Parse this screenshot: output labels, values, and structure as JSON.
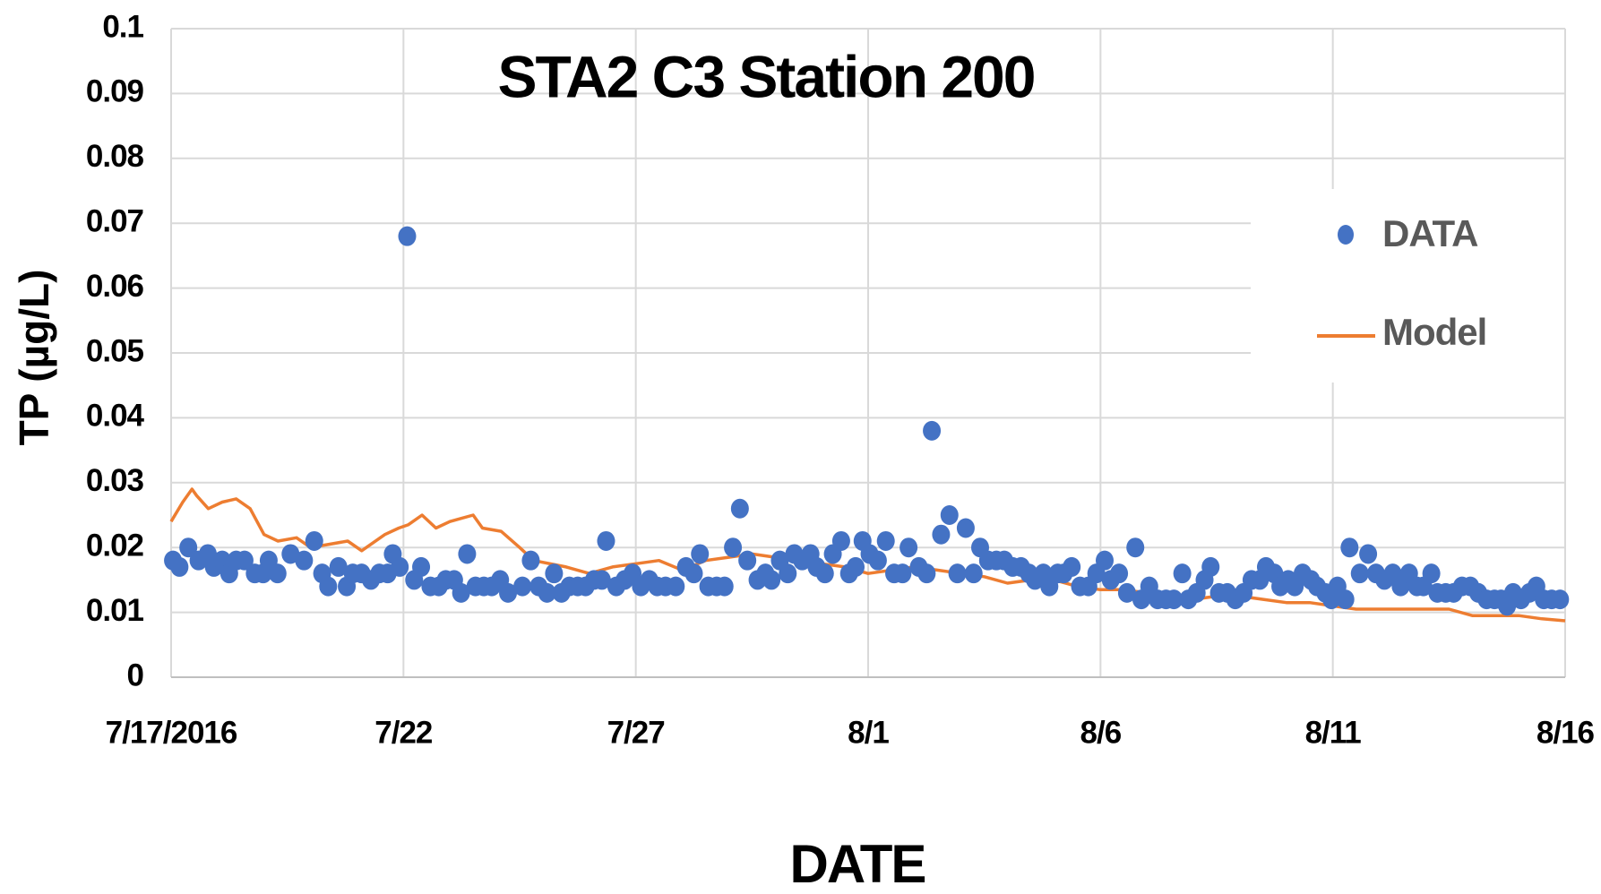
{
  "chart_data": {
    "type": "scatter",
    "title": "STA2 C3 Station 200",
    "x_label": "DATE",
    "y_label": "TP (µg/L)",
    "xlim": [
      0,
      30
    ],
    "ylim": [
      0,
      0.1
    ],
    "xticks": [
      {
        "value": 0,
        "label": "7/17/2016"
      },
      {
        "value": 5,
        "label": "7/22"
      },
      {
        "value": 10,
        "label": "7/27"
      },
      {
        "value": 15,
        "label": "8/1"
      },
      {
        "value": 20,
        "label": "8/6"
      },
      {
        "value": 25,
        "label": "8/11"
      },
      {
        "value": 30,
        "label": "8/16"
      }
    ],
    "yticks": [
      0,
      0.01,
      0.02,
      0.03,
      0.04,
      0.05,
      0.06,
      0.07,
      0.08,
      0.09,
      0.1
    ],
    "grid": true,
    "legend": "right",
    "series": [
      {
        "name": "DATA",
        "type": "scatter",
        "color": "#4472c4",
        "x": [
          0.04,
          0.18,
          0.37,
          0.59,
          0.79,
          0.92,
          1.1,
          1.25,
          1.4,
          1.58,
          1.8,
          1.98,
          2.1,
          2.29,
          2.57,
          2.86,
          3.08,
          3.25,
          3.38,
          3.6,
          3.78,
          3.91,
          4.1,
          4.3,
          4.48,
          4.66,
          4.77,
          4.92,
          5.08,
          5.23,
          5.38,
          5.58,
          5.76,
          5.91,
          6.09,
          6.24,
          6.37,
          6.55,
          6.73,
          6.9,
          7.08,
          7.25,
          7.56,
          7.74,
          7.91,
          8.09,
          8.24,
          8.4,
          8.57,
          8.75,
          8.92,
          9.1,
          9.27,
          9.36,
          9.58,
          9.76,
          9.93,
          10.11,
          10.29,
          10.46,
          10.64,
          10.86,
          11.08,
          11.25,
          11.38,
          11.56,
          11.74,
          11.91,
          12.09,
          12.24,
          12.4,
          12.62,
          12.79,
          12.92,
          13.1,
          13.27,
          13.41,
          13.58,
          13.76,
          13.89,
          14.07,
          14.24,
          14.42,
          14.59,
          14.73,
          14.88,
          15.03,
          15.21,
          15.38,
          15.56,
          15.74,
          15.87,
          16.09,
          16.26,
          16.37,
          16.57,
          16.75,
          16.92,
          17.1,
          17.27,
          17.41,
          17.58,
          17.76,
          17.93,
          18.11,
          18.29,
          18.46,
          18.59,
          18.77,
          18.9,
          19.08,
          19.21,
          19.38,
          19.56,
          19.74,
          19.91,
          20.09,
          20.22,
          20.4,
          20.57,
          20.75,
          20.88,
          21.05,
          21.23,
          21.41,
          21.58,
          21.76,
          21.89,
          22.07,
          22.24,
          22.37,
          22.55,
          22.73,
          22.9,
          23.08,
          23.25,
          23.43,
          23.56,
          23.74,
          23.87,
          24.04,
          24.18,
          24.35,
          24.53,
          24.66,
          24.84,
          24.97,
          25.1,
          25.27,
          25.36,
          25.58,
          25.76,
          25.93,
          26.11,
          26.29,
          26.46,
          26.64,
          26.81,
          26.95,
          27.12,
          27.25,
          27.43,
          27.6,
          27.78,
          27.96,
          28.13,
          28.31,
          28.48,
          28.62,
          28.75,
          28.88,
          29.05,
          29.23,
          29.38,
          29.54,
          29.71,
          29.89
        ],
        "values": [
          0.018,
          0.017,
          0.02,
          0.018,
          0.019,
          0.017,
          0.018,
          0.016,
          0.018,
          0.018,
          0.016,
          0.016,
          0.018,
          0.016,
          0.019,
          0.018,
          0.021,
          0.016,
          0.014,
          0.017,
          0.014,
          0.016,
          0.016,
          0.015,
          0.016,
          0.016,
          0.019,
          0.017,
          0.068,
          0.015,
          0.017,
          0.014,
          0.014,
          0.015,
          0.015,
          0.013,
          0.019,
          0.014,
          0.014,
          0.014,
          0.015,
          0.013,
          0.014,
          0.018,
          0.014,
          0.013,
          0.016,
          0.013,
          0.014,
          0.014,
          0.014,
          0.015,
          0.015,
          0.021,
          0.014,
          0.015,
          0.016,
          0.014,
          0.015,
          0.014,
          0.014,
          0.014,
          0.017,
          0.016,
          0.019,
          0.014,
          0.014,
          0.014,
          0.02,
          0.026,
          0.018,
          0.015,
          0.016,
          0.015,
          0.018,
          0.016,
          0.019,
          0.018,
          0.019,
          0.017,
          0.016,
          0.019,
          0.021,
          0.016,
          0.017,
          0.021,
          0.019,
          0.018,
          0.021,
          0.016,
          0.016,
          0.02,
          0.017,
          0.016,
          0.038,
          0.022,
          0.025,
          0.016,
          0.023,
          0.016,
          0.02,
          0.018,
          0.018,
          0.018,
          0.017,
          0.017,
          0.016,
          0.015,
          0.016,
          0.014,
          0.016,
          0.016,
          0.017,
          0.014,
          0.014,
          0.016,
          0.018,
          0.015,
          0.016,
          0.013,
          0.02,
          0.012,
          0.014,
          0.012,
          0.012,
          0.012,
          0.016,
          0.012,
          0.013,
          0.015,
          0.017,
          0.013,
          0.013,
          0.012,
          0.013,
          0.015,
          0.015,
          0.017,
          0.016,
          0.014,
          0.015,
          0.014,
          0.016,
          0.015,
          0.014,
          0.013,
          0.012,
          0.014,
          0.012,
          0.02,
          0.016,
          0.019,
          0.016,
          0.015,
          0.016,
          0.014,
          0.016,
          0.014,
          0.014,
          0.016,
          0.013,
          0.013,
          0.013,
          0.014,
          0.014,
          0.013,
          0.012,
          0.012,
          0.012,
          0.011,
          0.013,
          0.012,
          0.013,
          0.014,
          0.012,
          0.012,
          0.012
        ]
      },
      {
        "name": "Model",
        "type": "line",
        "color": "#ed7d31",
        "x": [
          0,
          0.25,
          0.45,
          0.55,
          0.8,
          1.1,
          1.4,
          1.7,
          2.0,
          2.3,
          2.7,
          3.0,
          3.4,
          3.8,
          4.1,
          4.6,
          4.9,
          5.1,
          5.4,
          5.7,
          6.0,
          6.5,
          6.7,
          7.1,
          7.5,
          7.8,
          8.5,
          9.0,
          9.5,
          10.0,
          10.5,
          11.0,
          11.5,
          12.0,
          12.5,
          13.0,
          13.5,
          14.0,
          14.5,
          15.0,
          15.5,
          16.0,
          16.5,
          17.0,
          17.5,
          18.0,
          18.5,
          19.0,
          19.5,
          20.0,
          20.5,
          21.0,
          21.5,
          22.0,
          22.5,
          23.0,
          23.5,
          24.0,
          24.5,
          25.0,
          25.5,
          26.0,
          26.5,
          27.0,
          27.5,
          28.0,
          28.5,
          29.0,
          29.5,
          30.0
        ],
        "values": [
          0.024,
          0.027,
          0.029,
          0.028,
          0.026,
          0.027,
          0.0275,
          0.026,
          0.022,
          0.021,
          0.0215,
          0.02,
          0.0205,
          0.021,
          0.0195,
          0.022,
          0.023,
          0.0235,
          0.025,
          0.023,
          0.024,
          0.025,
          0.023,
          0.0225,
          0.02,
          0.018,
          0.017,
          0.016,
          0.017,
          0.0175,
          0.018,
          0.0165,
          0.018,
          0.0185,
          0.019,
          0.0185,
          0.018,
          0.0175,
          0.017,
          0.016,
          0.0165,
          0.017,
          0.0165,
          0.016,
          0.0155,
          0.0145,
          0.015,
          0.015,
          0.014,
          0.0135,
          0.0135,
          0.013,
          0.0125,
          0.012,
          0.0125,
          0.0125,
          0.012,
          0.0115,
          0.0115,
          0.011,
          0.0105,
          0.0105,
          0.0105,
          0.0105,
          0.0105,
          0.0095,
          0.0095,
          0.0095,
          0.009,
          0.0087
        ]
      }
    ]
  }
}
